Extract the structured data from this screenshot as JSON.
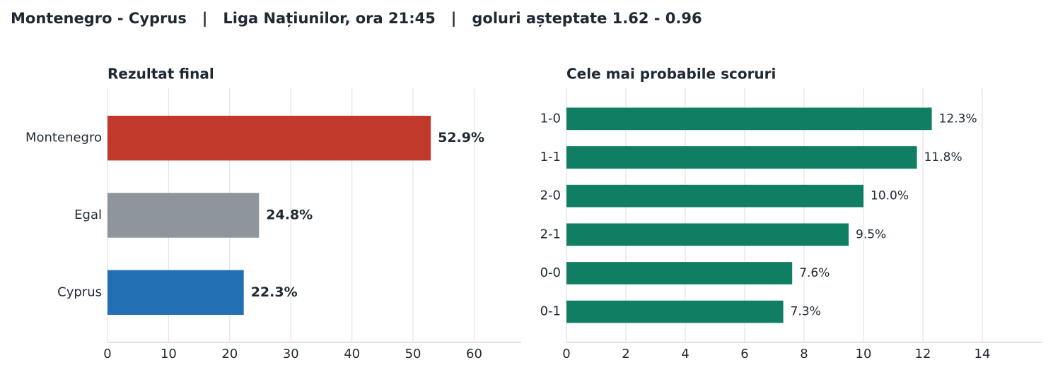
{
  "title": "Montenegro - Cyprus   |   Liga Națiunilor, ora 21:45   |   goluri așteptate 1.62 - 0.96",
  "chart_data": [
    {
      "type": "barh",
      "title": "Rezultat final",
      "categories": [
        "Montenegro",
        "Egal",
        "Cyprus"
      ],
      "values": [
        52.9,
        24.8,
        22.3
      ],
      "value_labels": [
        "52.9%",
        "24.8%",
        "22.3%"
      ],
      "colors": [
        "#c0392b",
        "#8e959b",
        "#2270b3"
      ],
      "xlim": [
        0,
        67.7
      ],
      "xticks": [
        0,
        10,
        20,
        30,
        40,
        50,
        60
      ],
      "grid": true
    },
    {
      "type": "barh",
      "title": "Cele mai probabile scoruri",
      "categories": [
        "1-0",
        "1-1",
        "2-0",
        "2-1",
        "0-0",
        "0-1"
      ],
      "values": [
        12.3,
        11.8,
        10.0,
        9.5,
        7.6,
        7.3
      ],
      "value_labels": [
        "12.3%",
        "11.8%",
        "10.0%",
        "9.5%",
        "7.6%",
        "7.3%"
      ],
      "color": "#0f7e62",
      "xlim": [
        0,
        16
      ],
      "xticks": [
        0,
        2,
        4,
        6,
        8,
        10,
        12,
        14
      ],
      "grid": true
    }
  ]
}
